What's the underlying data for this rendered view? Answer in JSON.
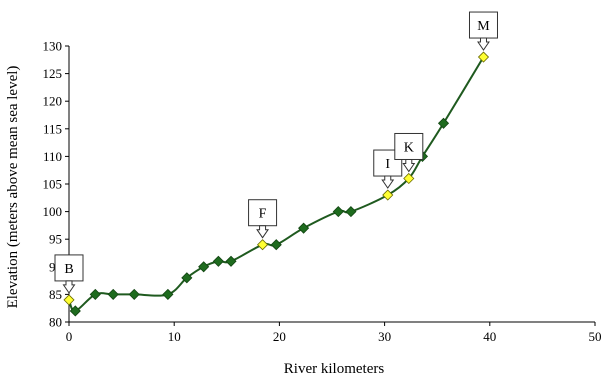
{
  "chart_data": {
    "type": "line",
    "xlabel": "River kilometers",
    "ylabel": "Elevation (meters above mean sea level)",
    "xlim": [
      0,
      50
    ],
    "ylim": [
      80,
      130
    ],
    "x_ticks": [
      0,
      10,
      20,
      30,
      40,
      50
    ],
    "y_ticks": [
      80,
      85,
      90,
      95,
      100,
      105,
      110,
      115,
      120,
      125,
      130
    ],
    "grid": false,
    "series": [
      {
        "line_color": "#1f5a1f",
        "marker_color": "#1e6b1e",
        "highlight_color": "#ffff33",
        "points": [
          {
            "x": 0.0,
            "y": 84,
            "label": "B"
          },
          {
            "x": 0.6,
            "y": 82
          },
          {
            "x": 2.5,
            "y": 85
          },
          {
            "x": 4.2,
            "y": 85
          },
          {
            "x": 6.2,
            "y": 85
          },
          {
            "x": 9.4,
            "y": 85
          },
          {
            "x": 11.2,
            "y": 88
          },
          {
            "x": 12.8,
            "y": 90
          },
          {
            "x": 14.2,
            "y": 91
          },
          {
            "x": 15.4,
            "y": 91
          },
          {
            "x": 18.4,
            "y": 94,
            "label": "F"
          },
          {
            "x": 19.7,
            "y": 94
          },
          {
            "x": 22.3,
            "y": 97
          },
          {
            "x": 25.6,
            "y": 100
          },
          {
            "x": 26.8,
            "y": 100
          },
          {
            "x": 30.3,
            "y": 103,
            "label": "I"
          },
          {
            "x": 32.3,
            "y": 106,
            "label": "K"
          },
          {
            "x": 33.6,
            "y": 110
          },
          {
            "x": 35.6,
            "y": 116
          },
          {
            "x": 39.4,
            "y": 128,
            "label": "M"
          }
        ]
      }
    ]
  }
}
